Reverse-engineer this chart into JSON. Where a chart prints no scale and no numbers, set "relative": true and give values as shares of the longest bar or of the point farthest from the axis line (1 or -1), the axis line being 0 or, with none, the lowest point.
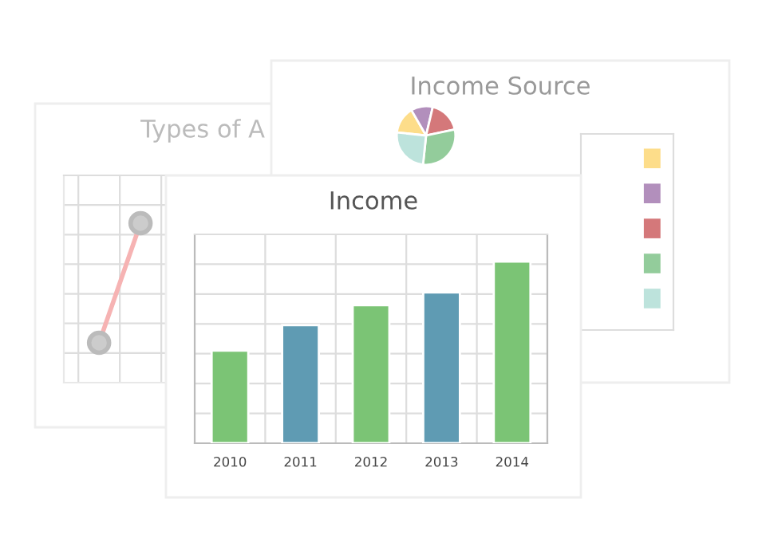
{
  "chart_data": [
    {
      "type": "line",
      "title": "Types of A",
      "relative": true,
      "categories": [
        null,
        null,
        null,
        null,
        null
      ],
      "grid": true,
      "marker": "circle",
      "tick_labels": false,
      "series": [
        {
          "color": "#f6b3b3",
          "values": [
            0.25,
            1,
            null,
            null,
            null
          ]
        }
      ]
    },
    {
      "type": "pie",
      "title": "Income Source",
      "categories": [
        null,
        null,
        null,
        null,
        null
      ],
      "values": [
        15,
        12,
        18,
        30,
        25
      ],
      "colors": [
        "#fddd8a",
        "#b28fbc",
        "#d4787a",
        "#93cc9b",
        "#bde3dc"
      ]
    },
    {
      "type": "bar",
      "title": "Income",
      "relative": true,
      "categories": [
        "2010",
        "2011",
        "2012",
        "2013",
        "2014"
      ],
      "values": [
        0.51,
        0.65,
        0.76,
        0.83,
        1
      ],
      "colors": [
        "#7bc475",
        "#5f9bb3",
        "#7bc475",
        "#5f9bb3",
        "#7bc475"
      ],
      "grid": true,
      "tick_labels": "x"
    }
  ]
}
